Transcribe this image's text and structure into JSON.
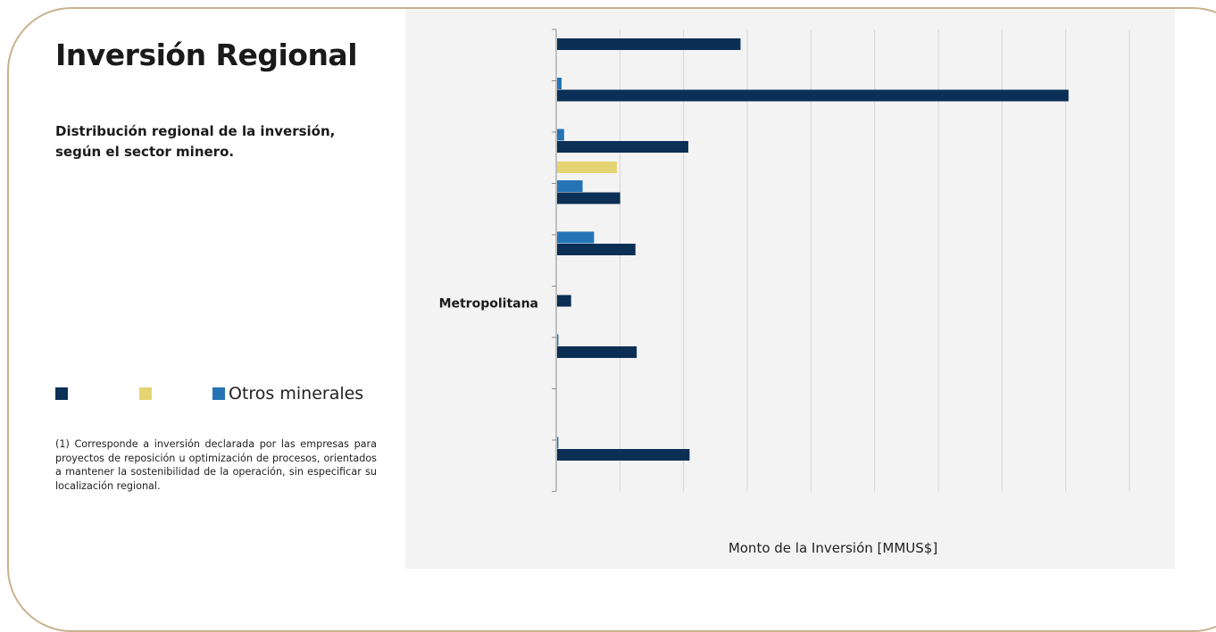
{
  "page": {
    "title": "Inversión Regional",
    "subtitle": "Distribución regional de la inversión, según el sector minero.",
    "footnote": "(1) Corresponde a inversión declarada por las empresas para proyectos de reposición u optimización de procesos, orientados a mantener la sostenibilidad de la operación, sin especificar su localización regional."
  },
  "colors": {
    "frame": "#c8b28e",
    "panel": "#f3f3f3",
    "gridline": "#d6d6d6",
    "axis": "#8c8c8c"
  },
  "legend": [
    {
      "label": "",
      "color": "#0b2f55"
    },
    {
      "label": "",
      "color": "#e5d572"
    },
    {
      "label": "Otros minerales",
      "color": "#2474b6"
    }
  ],
  "chart_data": {
    "type": "bar",
    "orientation": "horizontal",
    "xlabel": "Monto de la Inversión [MMUS$]",
    "ylabel": "",
    "xlim": [
      0,
      9000
    ],
    "grid": true,
    "legend_placement": "left",
    "categories": [
      "",
      "",
      "",
      "",
      "",
      "Metropolitana",
      "",
      "",
      ""
    ],
    "series": [
      {
        "name": "",
        "color": "#0b2f55",
        "values": [
          2880,
          8030,
          2060,
          990,
          1230,
          220,
          1250,
          0,
          2080
        ]
      },
      {
        "name": "",
        "color": "#e5d572",
        "values": [
          0,
          0,
          940,
          0,
          0,
          0,
          0,
          0,
          0
        ]
      },
      {
        "name": "Otros minerales",
        "color": "#2474b6",
        "values": [
          70,
          110,
          400,
          580,
          0,
          20,
          0,
          20,
          0
        ]
      }
    ]
  }
}
